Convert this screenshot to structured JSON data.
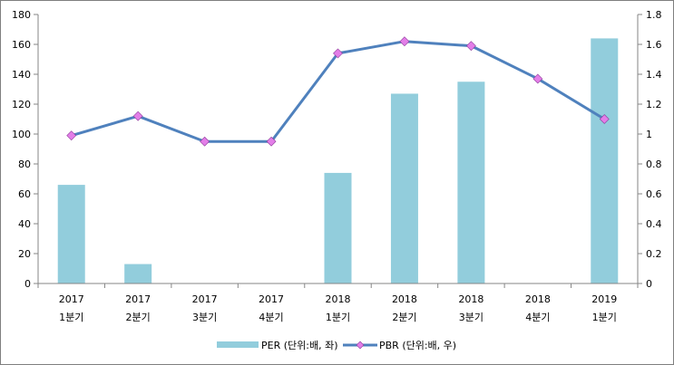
{
  "chart_data": {
    "type": "bar+line",
    "categories": [
      [
        "2017",
        "1분기"
      ],
      [
        "2017",
        "2분기"
      ],
      [
        "2017",
        "3분기"
      ],
      [
        "2017",
        "4분기"
      ],
      [
        "2018",
        "1분기"
      ],
      [
        "2018",
        "2분기"
      ],
      [
        "2018",
        "3분기"
      ],
      [
        "2018",
        "4분기"
      ],
      [
        "2019",
        "1분기"
      ]
    ],
    "series": [
      {
        "name": "PER (단위:배, 좌)",
        "type": "bar",
        "axis": "left",
        "color": "#92cddc",
        "values": [
          66,
          13,
          null,
          null,
          74,
          127,
          135,
          null,
          164
        ]
      },
      {
        "name": "PBR (단위:배, 우)",
        "type": "line",
        "axis": "right",
        "color": "#4f81bd",
        "marker_color": "#e37ee8",
        "values": [
          0.99,
          1.12,
          0.95,
          0.95,
          1.54,
          1.62,
          1.59,
          1.37,
          1.1
        ]
      }
    ],
    "y_left": {
      "min": 0,
      "max": 180,
      "step": 20
    },
    "y_right": {
      "min": 0,
      "max": 1.8,
      "step": 0.2
    },
    "grid": false,
    "legend_position": "bottom"
  }
}
